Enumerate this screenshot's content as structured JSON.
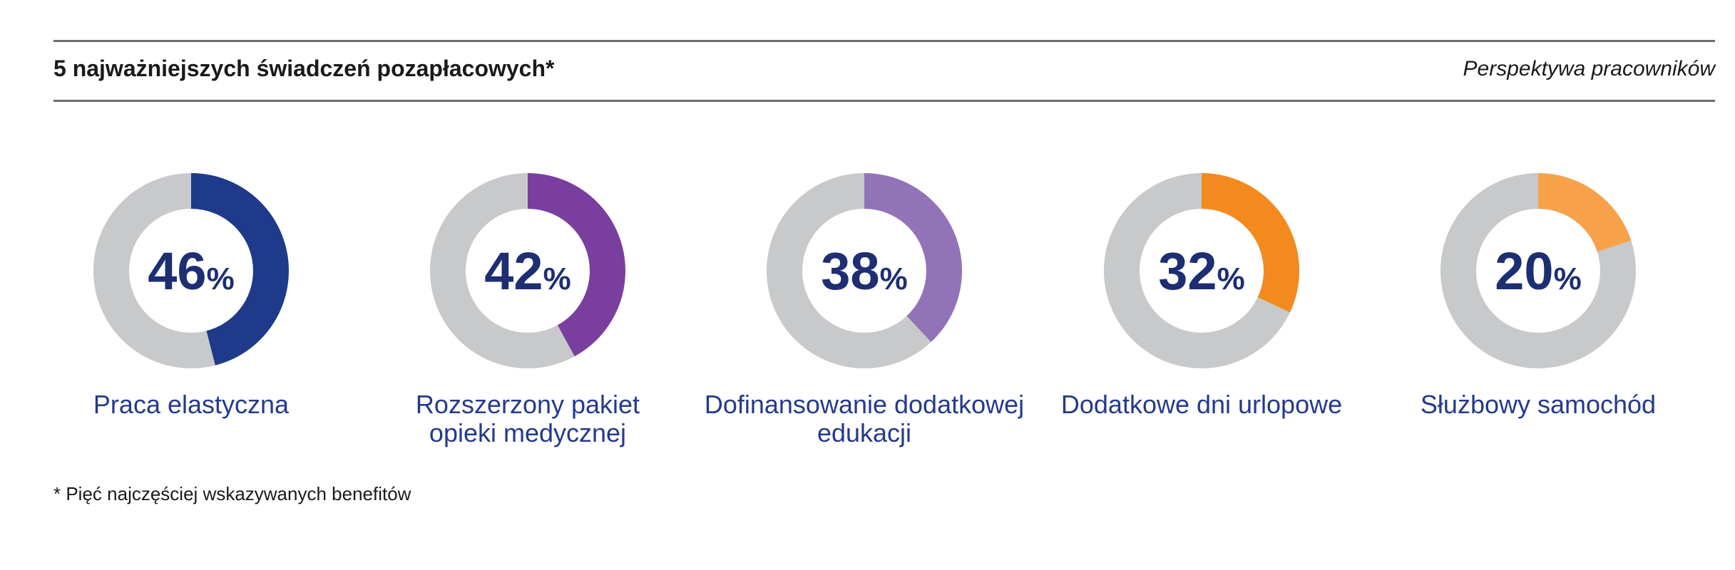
{
  "header": {
    "title": "5 najważniejszych świadczeń pozapłacowych*",
    "subtitle": "Perspektywa pracowników"
  },
  "chart_data": {
    "type": "donut",
    "value_unit": "%",
    "items": [
      {
        "label_lines": [
          "Praca elastyczna"
        ],
        "value": 46,
        "color": "#1f3a8a"
      },
      {
        "label_lines": [
          "Rozszerzony pakiet",
          "opieki medycznej"
        ],
        "value": 42,
        "color": "#7a3f9e"
      },
      {
        "label_lines": [
          "Dofinansowanie dodatkowej",
          "edukacji"
        ],
        "value": 38,
        "color": "#9273b8"
      },
      {
        "label_lines": [
          "Dodatkowe dni urlopowe"
        ],
        "value": 32,
        "color": "#f28a1e"
      },
      {
        "label_lines": [
          "Służbowy samochód"
        ],
        "value": 20,
        "color": "#f7a24a"
      }
    ],
    "track_color": "#c8c9cb"
  },
  "footnote": "* Pięć najczęściej wskazywanych benefitów"
}
